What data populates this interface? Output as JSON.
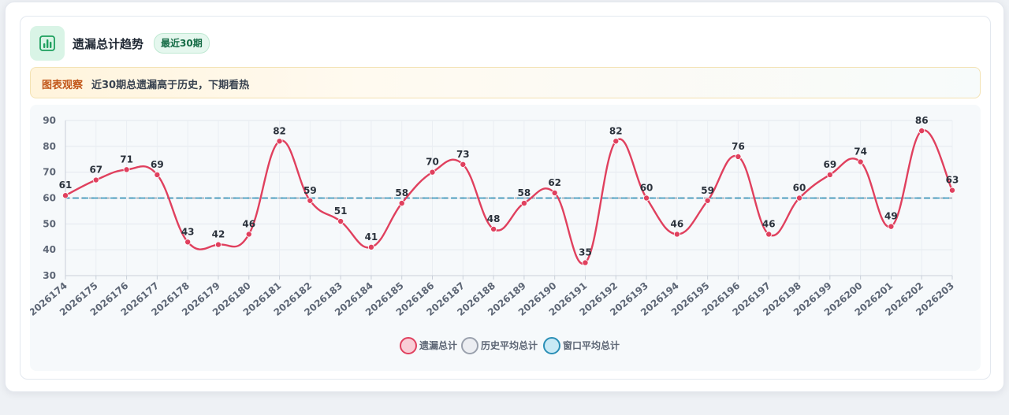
{
  "header": {
    "title": "遗漏总计趋势",
    "badge": "最近30期",
    "icon": "bar-chart-icon"
  },
  "observation": {
    "label": "图表观察",
    "text": "近30期总遗漏高于历史，下期看热"
  },
  "colors": {
    "series": "#e0405e",
    "history_avg": "#9aa1ad",
    "window_avg": "#2b8fb6",
    "accent_green": "#1d9f5e"
  },
  "chart_data": {
    "type": "line",
    "categories": [
      "2026174",
      "2026175",
      "2026176",
      "2026177",
      "2026178",
      "2026179",
      "2026180",
      "2026181",
      "2026182",
      "2026183",
      "2026184",
      "2026185",
      "2026186",
      "2026187",
      "2026188",
      "2026189",
      "2026190",
      "2026191",
      "2026192",
      "2026193",
      "2026194",
      "2026195",
      "2026196",
      "2026197",
      "2026198",
      "2026199",
      "2026200",
      "2026201",
      "2026202",
      "2026203"
    ],
    "series": [
      {
        "name": "遗漏总计",
        "values": [
          61,
          67,
          71,
          69,
          43,
          42,
          46,
          82,
          59,
          51,
          41,
          58,
          70,
          73,
          48,
          58,
          62,
          35,
          82,
          60,
          46,
          59,
          76,
          46,
          60,
          69,
          74,
          49,
          86,
          63
        ]
      },
      {
        "name": "历史平均总计",
        "values": [
          60,
          60,
          60,
          60,
          60,
          60,
          60,
          60,
          60,
          60,
          60,
          60,
          60,
          60,
          60,
          60,
          60,
          60,
          60,
          60,
          60,
          60,
          60,
          60,
          60,
          60,
          60,
          60,
          60,
          60
        ]
      },
      {
        "name": "窗口平均总计",
        "values": [
          60,
          60,
          60,
          60,
          60,
          60,
          60,
          60,
          60,
          60,
          60,
          60,
          60,
          60,
          60,
          60,
          60,
          60,
          60,
          60,
          60,
          60,
          60,
          60,
          60,
          60,
          60,
          60,
          60,
          60
        ]
      }
    ],
    "ylim": [
      30,
      90
    ],
    "yticks": [
      30,
      40,
      50,
      60,
      70,
      80,
      90
    ],
    "grid": true,
    "legend": "bottom-center",
    "data_labels": true
  }
}
